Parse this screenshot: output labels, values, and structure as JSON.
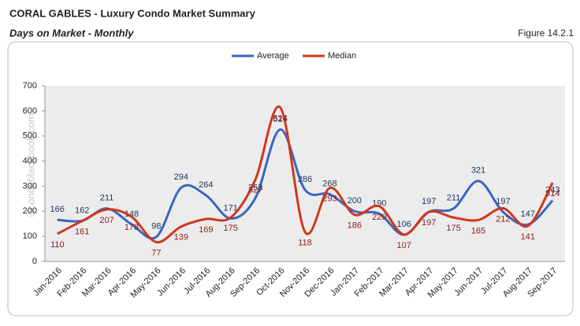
{
  "chart_data": {
    "type": "line",
    "title": "CORAL GABLES - Luxury Condo Market Summary",
    "subtitle": "Days on Market - Monthly",
    "figure": "Figure 14.2.1",
    "watermark": "©condoblackbook.com",
    "categories": [
      "Jan-2016",
      "Feb-2016",
      "Mar-2016",
      "Apr-2016",
      "May-2016",
      "Jun-2016",
      "Jul-2016",
      "Aug-2016",
      "Sep-2016",
      "Oct-2016",
      "Nov-2016",
      "Dec-2016",
      "Jan-2017",
      "Feb-2017",
      "Mar-2017",
      "Apr-2017",
      "May-2017",
      "Jun-2017",
      "Jul-2017",
      "Aug-2017",
      "Sep-2017"
    ],
    "series": [
      {
        "name": "Average",
        "color": "#3a66c0",
        "values": [
          166,
          162,
          211,
          148,
          98,
          294,
          264,
          171,
          253,
          526,
          286,
          268,
          200,
          190,
          106,
          197,
          211,
          321,
          197,
          147,
          243
        ]
      },
      {
        "name": "Median",
        "color": "#d0381c",
        "values": [
          110,
          161,
          207,
          178,
          77,
          139,
          169,
          175,
          327,
          614,
          118,
          293,
          186,
          220,
          107,
          197,
          175,
          165,
          212,
          141,
          314
        ]
      }
    ],
    "ylim": [
      0,
      700
    ],
    "yticks": [
      0,
      100,
      200,
      300,
      400,
      500,
      600,
      700
    ],
    "legend": "top",
    "smooth": true
  }
}
